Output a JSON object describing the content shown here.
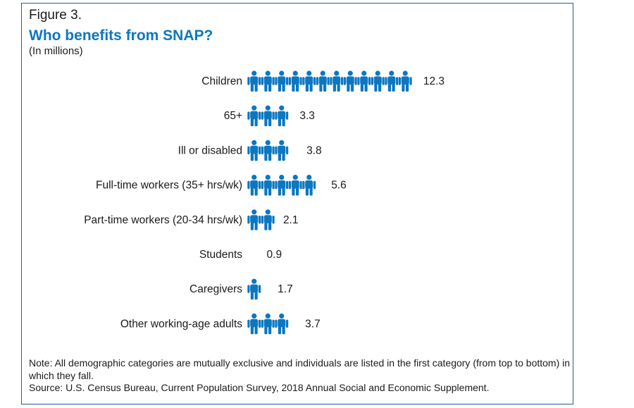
{
  "figure_label": "Figure 3.",
  "title": "Who benefits from SNAP?",
  "subtitle": "(In millions)",
  "colors": {
    "icon": "#0c77c0",
    "title": "#0c77c0",
    "frame": "#1f5c99",
    "text": "#1a1a1a"
  },
  "icon_name": "person-icon",
  "chart_data": {
    "type": "bar",
    "title": "Who benefits from SNAP?",
    "subtitle": "(In millions)",
    "unit": "millions",
    "encoding": "pictograph",
    "categories": [
      "Children",
      "65+",
      "Ill or disabled",
      "Full-time workers (35+ hrs/wk)",
      "Part-time workers (20-34 hrs/wk)",
      "Students",
      "Caregivers",
      "Other working-age adults"
    ],
    "values": [
      12.3,
      3.3,
      3.8,
      5.6,
      2.1,
      0.9,
      1.7,
      3.7
    ],
    "value_labels": [
      "12.3",
      "3.3",
      "3.8",
      "5.6",
      "2.1",
      "0.9",
      "1.7",
      "3.7"
    ]
  },
  "notes": {
    "note": "Note: All demographic categories are mutually exclusive and individuals are listed in the first category (from top to bottom) in which they fall.",
    "source": "Source: U.S. Census Bureau, Current Population Survey, 2018 Annual Social and Economic Supplement."
  }
}
